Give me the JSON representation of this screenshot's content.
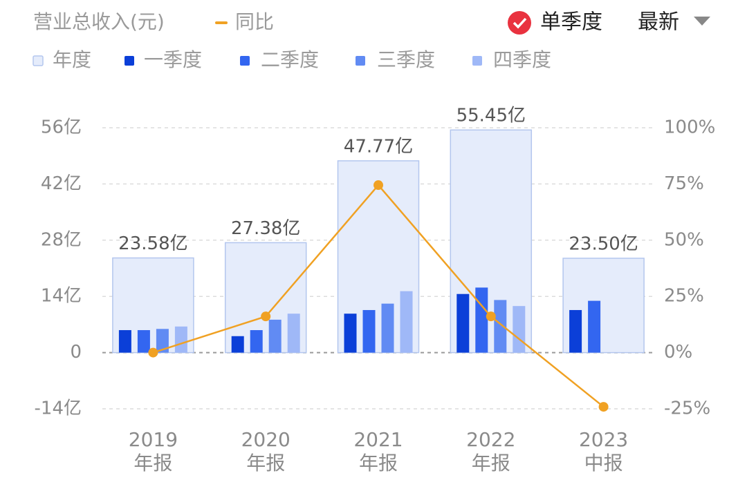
{
  "chart_data": {
    "type": "bar",
    "title": "营业总收入(元)",
    "categories": [
      [
        "2019",
        "年报"
      ],
      [
        "2020",
        "年报"
      ],
      [
        "2021",
        "年报"
      ],
      [
        "2022",
        "年报"
      ],
      [
        "2023",
        "中报"
      ]
    ],
    "series": [
      {
        "name": "年度",
        "kind": "annual",
        "color": "#e5ecfb",
        "stroke": "#b3c6ee",
        "values": [
          23.58,
          27.38,
          47.77,
          55.45,
          23.5
        ],
        "value_labels": [
          "23.58亿",
          "27.38亿",
          "47.77亿",
          "55.45亿",
          "23.50亿"
        ]
      },
      {
        "name": "一季度",
        "color": "#0b3fd8",
        "values": [
          5.6,
          4.1,
          9.7,
          14.6,
          10.6
        ]
      },
      {
        "name": "二季度",
        "color": "#3366f0",
        "values": [
          5.6,
          5.6,
          10.6,
          16.2,
          12.9
        ]
      },
      {
        "name": "三季度",
        "color": "#618bf3",
        "values": [
          5.9,
          8.2,
          12.2,
          13.1,
          null
        ]
      },
      {
        "name": "四季度",
        "color": "#9fb8f7",
        "values": [
          6.5,
          9.7,
          15.3,
          11.6,
          null
        ]
      },
      {
        "name": "同比",
        "type": "line",
        "axis": "y2",
        "color": "#f0a123",
        "values": [
          0,
          16.1,
          74.5,
          16.1,
          -24.1
        ]
      }
    ],
    "ylim": [
      -14,
      56
    ],
    "yticks": [
      {
        "value": -14,
        "label": "-14亿"
      },
      0,
      {
        "value": 14,
        "label": "14亿"
      },
      {
        "value": 28,
        "label": "28亿"
      },
      {
        "value": 42,
        "label": "42亿"
      },
      {
        "value": 56,
        "label": "56亿"
      }
    ],
    "y2lim": [
      -25,
      100
    ],
    "y2ticks": [
      {
        "value": -25,
        "label": "-25%"
      },
      {
        "value": 0,
        "label": "0%"
      },
      {
        "value": 25,
        "label": "25%"
      },
      {
        "value": 50,
        "label": "50%"
      },
      {
        "value": 75,
        "label": "75%"
      },
      {
        "value": 100,
        "label": "100%"
      }
    ],
    "grid": true
  },
  "controls": {
    "quarter_toggle": "单季度",
    "period": "最新"
  }
}
